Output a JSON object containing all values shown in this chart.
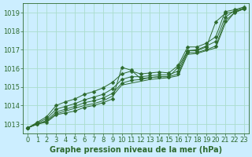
{
  "title": "Graphe pression niveau de la mer (hPa)",
  "background_color": "#cceeff",
  "grid_color": "#aaddcc",
  "line_color": "#2d6a2d",
  "xlim": [
    -0.5,
    23.5
  ],
  "ylim": [
    1012.5,
    1019.5
  ],
  "yticks": [
    1013,
    1014,
    1015,
    1016,
    1017,
    1018,
    1019
  ],
  "xticks": [
    0,
    1,
    2,
    3,
    4,
    5,
    6,
    7,
    8,
    9,
    10,
    11,
    12,
    13,
    14,
    15,
    16,
    17,
    18,
    19,
    20,
    21,
    22,
    23
  ],
  "series": [
    {
      "y": [
        1012.8,
        1013.0,
        1013.1,
        1013.5,
        1013.6,
        1013.7,
        1013.9,
        1014.0,
        1014.15,
        1014.35,
        1016.05,
        1015.9,
        1015.45,
        1015.5,
        1015.55,
        1015.55,
        1016.05,
        1016.95,
        1016.95,
        1017.15,
        1018.5,
        1018.95,
        1019.05,
        1019.2
      ],
      "marker": "D",
      "markersize": 2.5
    },
    {
      "y": [
        1012.8,
        1013.0,
        1013.15,
        1013.55,
        1013.7,
        1013.85,
        1014.0,
        1014.1,
        1014.25,
        1014.5,
        1015.1,
        1015.2,
        1015.3,
        1015.4,
        1015.45,
        1015.5,
        1015.6,
        1016.75,
        1016.8,
        1016.95,
        1017.1,
        1018.4,
        1019.0,
        1019.2
      ],
      "marker": null,
      "markersize": 0
    },
    {
      "y": [
        1012.8,
        1013.0,
        1013.2,
        1013.65,
        1013.8,
        1013.95,
        1014.15,
        1014.25,
        1014.4,
        1014.65,
        1015.2,
        1015.35,
        1015.4,
        1015.5,
        1015.55,
        1015.55,
        1015.7,
        1016.85,
        1016.85,
        1017.0,
        1017.2,
        1018.55,
        1019.0,
        1019.2
      ],
      "marker": "D",
      "markersize": 2.5
    },
    {
      "y": [
        1012.8,
        1013.05,
        1013.3,
        1013.8,
        1013.95,
        1014.1,
        1014.3,
        1014.45,
        1014.6,
        1014.9,
        1015.4,
        1015.55,
        1015.55,
        1015.6,
        1015.65,
        1015.65,
        1015.85,
        1016.95,
        1017.0,
        1017.2,
        1017.45,
        1018.75,
        1019.1,
        1019.25
      ],
      "marker": "D",
      "markersize": 2.5
    },
    {
      "y": [
        1012.8,
        1013.1,
        1013.4,
        1014.0,
        1014.2,
        1014.35,
        1014.6,
        1014.75,
        1014.95,
        1015.25,
        1015.7,
        1015.85,
        1015.7,
        1015.75,
        1015.8,
        1015.75,
        1016.15,
        1017.15,
        1017.15,
        1017.35,
        1017.7,
        1019.05,
        1019.15,
        1019.3
      ],
      "marker": "D",
      "markersize": 2.5
    }
  ],
  "label_color": "#2d6a2d",
  "tick_fontsize": 6,
  "title_fontsize": 7
}
